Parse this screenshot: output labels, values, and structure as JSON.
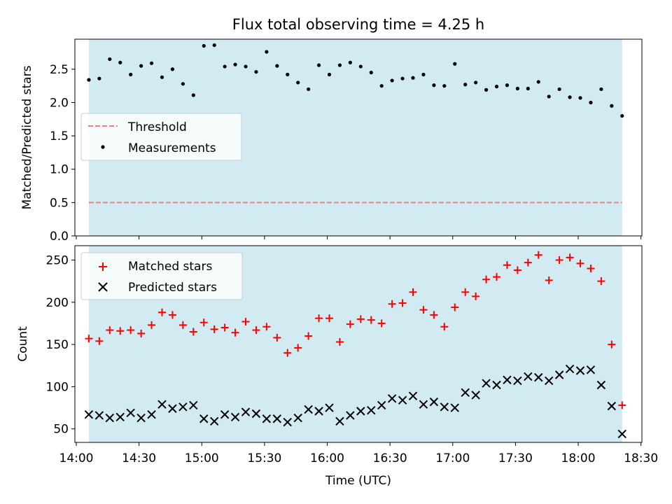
{
  "figure": {
    "title": "Flux total observing time = 4.25 h"
  },
  "colors": {
    "shade": "#add8e6",
    "threshold": "#f08080",
    "measurement": "#000000",
    "matched": "#ff0000",
    "predicted": "#000000"
  },
  "chart_data": [
    {
      "type": "scatter",
      "ylabel": "Matched/Predicted stars",
      "xlabel": "",
      "xlim": [
        "14:00",
        "18:30"
      ],
      "ylim": [
        0,
        2.95
      ],
      "grid": false,
      "legend_placement": "center-left",
      "shaded_interval": [
        "14:06",
        "18:21"
      ],
      "yticks": [
        "0.0",
        "0.5",
        "1.0",
        "1.5",
        "2.0",
        "2.5"
      ],
      "threshold": {
        "name": "Threshold",
        "value": 0.5
      },
      "series": [
        {
          "name": "Measurements",
          "x": [
            "14:06",
            "14:11",
            "14:16",
            "14:21",
            "14:26",
            "14:31",
            "14:36",
            "14:41",
            "14:46",
            "14:51",
            "14:56",
            "15:01",
            "15:06",
            "15:11",
            "15:16",
            "15:21",
            "15:26",
            "15:31",
            "15:36",
            "15:41",
            "15:46",
            "15:51",
            "15:56",
            "16:01",
            "16:06",
            "16:11",
            "16:16",
            "16:21",
            "16:26",
            "16:31",
            "16:36",
            "16:41",
            "16:46",
            "16:51",
            "16:56",
            "17:01",
            "17:06",
            "17:11",
            "17:16",
            "17:21",
            "17:26",
            "17:31",
            "17:36",
            "17:41",
            "17:46",
            "17:51",
            "17:56",
            "18:01",
            "18:06",
            "18:11",
            "18:16",
            "18:21"
          ],
          "y": [
            2.34,
            2.36,
            2.65,
            2.6,
            2.42,
            2.55,
            2.59,
            2.38,
            2.5,
            2.28,
            2.11,
            2.85,
            2.86,
            2.54,
            2.57,
            2.54,
            2.46,
            2.76,
            2.55,
            2.42,
            2.3,
            2.2,
            2.56,
            2.42,
            2.56,
            2.6,
            2.54,
            2.45,
            2.25,
            2.33,
            2.36,
            2.37,
            2.42,
            2.26,
            2.25,
            2.58,
            2.27,
            2.3,
            2.19,
            2.24,
            2.26,
            2.21,
            2.21,
            2.31,
            2.09,
            2.2,
            2.08,
            2.07,
            2.0,
            2.2,
            1.95,
            1.8
          ]
        }
      ]
    },
    {
      "type": "scatter",
      "ylabel": "Count",
      "xlabel": "Time (UTC)",
      "xlim": [
        "14:00",
        "18:30"
      ],
      "ylim": [
        34,
        267
      ],
      "grid": false,
      "legend_placement": "top-left",
      "shaded_interval": [
        "14:06",
        "18:21"
      ],
      "yticks": [
        "50",
        "100",
        "150",
        "200",
        "250"
      ],
      "xticks": [
        "14:00",
        "14:30",
        "15:00",
        "15:30",
        "16:00",
        "16:30",
        "17:00",
        "17:30",
        "18:00",
        "18:30"
      ],
      "series": [
        {
          "name": "Matched stars",
          "marker": "plus",
          "x": [
            "14:06",
            "14:11",
            "14:16",
            "14:21",
            "14:26",
            "14:31",
            "14:36",
            "14:41",
            "14:46",
            "14:51",
            "14:56",
            "15:01",
            "15:06",
            "15:11",
            "15:16",
            "15:21",
            "15:26",
            "15:31",
            "15:36",
            "15:41",
            "15:46",
            "15:51",
            "15:56",
            "16:01",
            "16:06",
            "16:11",
            "16:16",
            "16:21",
            "16:26",
            "16:31",
            "16:36",
            "16:41",
            "16:46",
            "16:51",
            "16:56",
            "17:01",
            "17:06",
            "17:11",
            "17:16",
            "17:21",
            "17:26",
            "17:31",
            "17:36",
            "17:41",
            "17:46",
            "17:51",
            "17:56",
            "18:01",
            "18:06",
            "18:11",
            "18:16",
            "18:21"
          ],
          "y": [
            157,
            154,
            167,
            166,
            167,
            163,
            173,
            188,
            185,
            173,
            165,
            176,
            168,
            170,
            164,
            177,
            167,
            171,
            158,
            140,
            146,
            160,
            181,
            181,
            153,
            174,
            180,
            179,
            175,
            198,
            199,
            212,
            191,
            185,
            171,
            194,
            212,
            207,
            227,
            230,
            244,
            238,
            247,
            256,
            226,
            250,
            253,
            246,
            240,
            225,
            150,
            78
          ]
        },
        {
          "name": "Predicted stars",
          "marker": "x",
          "x": [
            "14:06",
            "14:11",
            "14:16",
            "14:21",
            "14:26",
            "14:31",
            "14:36",
            "14:41",
            "14:46",
            "14:51",
            "14:56",
            "15:01",
            "15:06",
            "15:11",
            "15:16",
            "15:21",
            "15:26",
            "15:31",
            "15:36",
            "15:41",
            "15:46",
            "15:51",
            "15:56",
            "16:01",
            "16:06",
            "16:11",
            "16:16",
            "16:21",
            "16:26",
            "16:31",
            "16:36",
            "16:41",
            "16:46",
            "16:51",
            "16:56",
            "17:01",
            "17:06",
            "17:11",
            "17:16",
            "17:21",
            "17:26",
            "17:31",
            "17:36",
            "17:41",
            "17:46",
            "17:51",
            "17:56",
            "18:01",
            "18:06",
            "18:11",
            "18:16",
            "18:21"
          ],
          "y": [
            67,
            66,
            63,
            64,
            69,
            63,
            67,
            79,
            74,
            76,
            78,
            62,
            59,
            67,
            64,
            70,
            68,
            62,
            62,
            58,
            63,
            73,
            71,
            75,
            59,
            66,
            71,
            72,
            78,
            86,
            84,
            89,
            79,
            82,
            76,
            75,
            93,
            90,
            104,
            102,
            108,
            107,
            112,
            111,
            107,
            114,
            121,
            119,
            120,
            102,
            77,
            44
          ]
        }
      ]
    }
  ]
}
